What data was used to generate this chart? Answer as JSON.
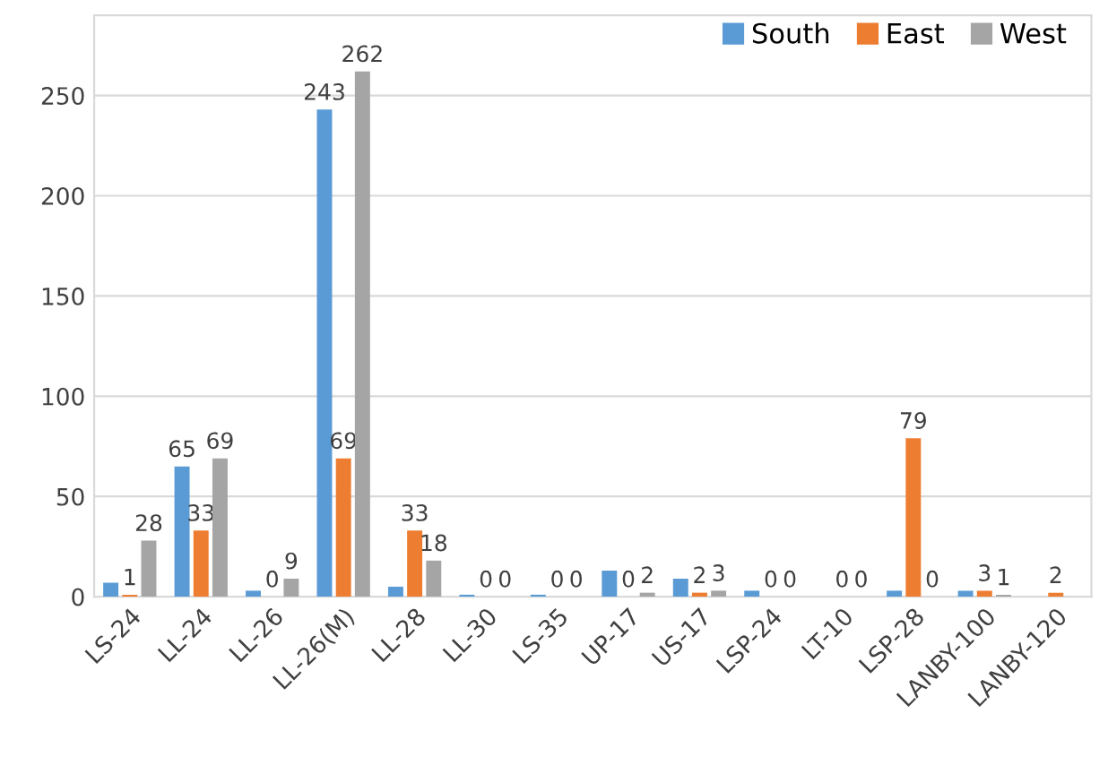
{
  "chart_data": {
    "type": "bar",
    "categories": [
      "LS-24",
      "LL-24",
      "LL-26",
      "LL-26(M)",
      "LL-28",
      "LL-30",
      "LS-35",
      "UP-17",
      "US-17",
      "LSP-24",
      "LT-10",
      "LSP-28",
      "LANBY-100",
      "LANBY-120"
    ],
    "series": [
      {
        "name": "South",
        "color": "#5b9bd5",
        "values": [
          7,
          65,
          3,
          243,
          5,
          1,
          1,
          13,
          9,
          3,
          0,
          3,
          3,
          0
        ],
        "value_labels": [
          null,
          "65",
          null,
          "243",
          null,
          null,
          null,
          null,
          null,
          null,
          null,
          null,
          null,
          null
        ]
      },
      {
        "name": "East",
        "color": "#ed7d31",
        "values": [
          1,
          33,
          0,
          69,
          33,
          0,
          0,
          0,
          2,
          0,
          0,
          79,
          3,
          2
        ],
        "value_labels": [
          "1",
          "33",
          "0",
          "69",
          "33",
          "0",
          "0",
          "0",
          "2",
          "0",
          "0",
          "79",
          "3",
          "2"
        ]
      },
      {
        "name": "West",
        "color": "#a5a5a5",
        "values": [
          28,
          69,
          9,
          262,
          18,
          0,
          0,
          2,
          3,
          0,
          0,
          0,
          1,
          null
        ],
        "value_labels": [
          "28",
          "69",
          "9",
          "262",
          "18",
          "0",
          "0",
          "2",
          "3",
          "0",
          "0",
          "0",
          "1",
          null
        ]
      }
    ],
    "ylim": [
      0,
      290
    ],
    "yticks": [
      0,
      50,
      100,
      150,
      200,
      250
    ],
    "grid": "y",
    "legend": "top right"
  }
}
